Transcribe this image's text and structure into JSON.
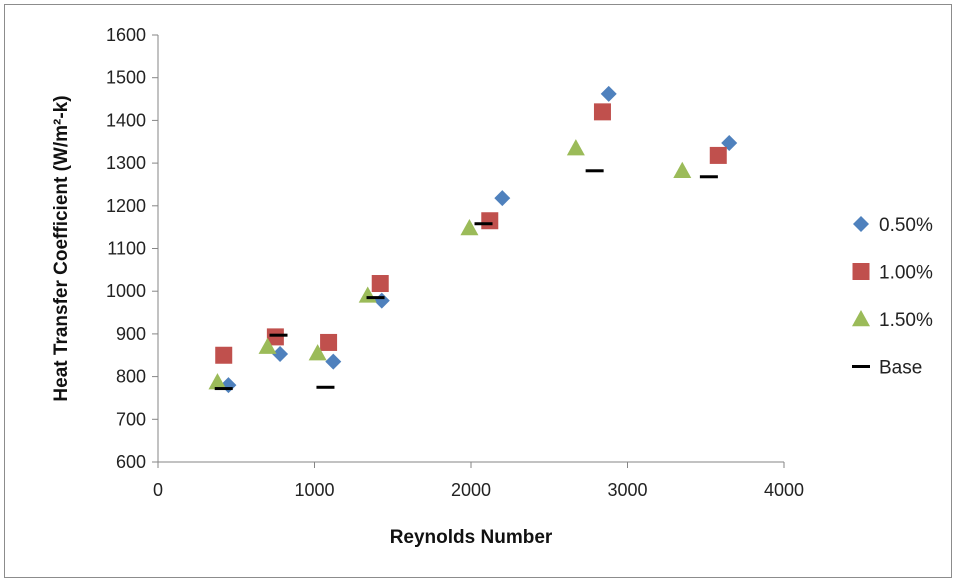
{
  "chart_data": {
    "type": "scatter",
    "title": "",
    "xlabel": "Reynolds Number",
    "ylabel": "Heat Transfer Coefficient (W/m²-k)",
    "xlim": [
      0,
      4000
    ],
    "ylim": [
      600,
      1600
    ],
    "x_ticks": [
      0,
      1000,
      2000,
      3000,
      4000
    ],
    "y_ticks": [
      600,
      700,
      800,
      900,
      1000,
      1100,
      1200,
      1300,
      1400,
      1500,
      1600
    ],
    "grid": false,
    "legend_position": "right",
    "series": [
      {
        "name": "0.50%",
        "marker": "diamond",
        "color": "#4F81BD",
        "points": [
          [
            450,
            780
          ],
          [
            780,
            853
          ],
          [
            1120,
            835
          ],
          [
            1430,
            978
          ],
          [
            2200,
            1218
          ],
          [
            2880,
            1462
          ],
          [
            3650,
            1347
          ]
        ]
      },
      {
        "name": "1.00%",
        "marker": "square",
        "color": "#C0504D",
        "points": [
          [
            420,
            850
          ],
          [
            750,
            893
          ],
          [
            1090,
            880
          ],
          [
            1420,
            1018
          ],
          [
            2120,
            1165
          ],
          [
            2840,
            1420
          ],
          [
            3580,
            1318
          ]
        ]
      },
      {
        "name": "1.50%",
        "marker": "triangle",
        "color": "#9BBB59",
        "points": [
          [
            380,
            787
          ],
          [
            700,
            870
          ],
          [
            1020,
            855
          ],
          [
            1340,
            990
          ],
          [
            1990,
            1148
          ],
          [
            2670,
            1335
          ],
          [
            3350,
            1282
          ]
        ]
      },
      {
        "name": "Base",
        "marker": "dash",
        "color": "#000000",
        "points": [
          [
            420,
            772
          ],
          [
            770,
            897
          ],
          [
            1070,
            775
          ],
          [
            1390,
            985
          ],
          [
            2080,
            1158
          ],
          [
            2790,
            1282
          ],
          [
            3520,
            1268
          ]
        ]
      }
    ]
  }
}
